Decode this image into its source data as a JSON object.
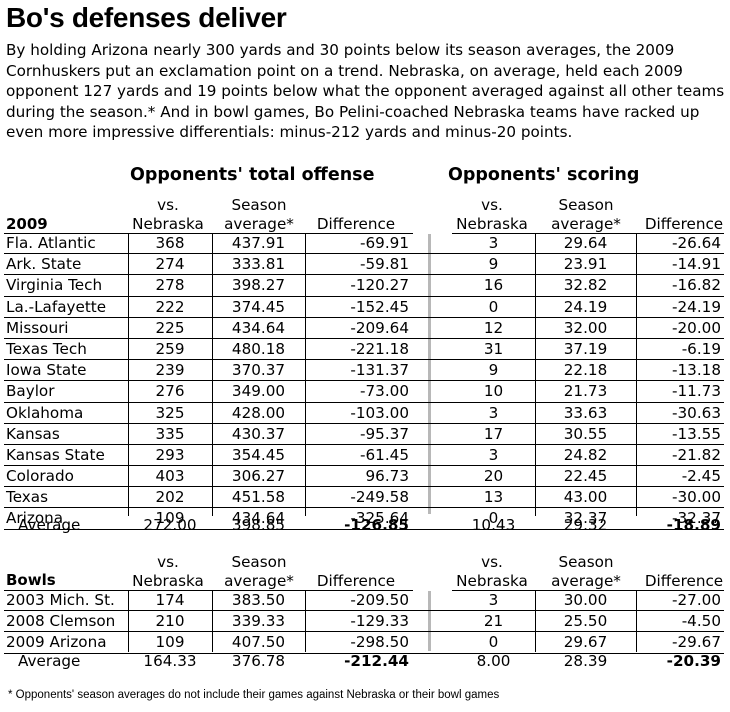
{
  "title": "Bo's defenses deliver",
  "intro": "By holding Arizona nearly 300 yards and 30 points below its season averages, the 2009 Cornhuskers put an exclamation point on a trend. Nebraska, on average, held each 2009 opponent 127 yards and 19 points below what the opponent averaged against all other teams during the season.* And in bowl games, Bo Pelini-coached Nebraska teams have racked up even more impressive differentials: minus-212 yards and minus-20 points.",
  "offense_title": "Opponents' total offense",
  "scoring_title": "Opponents' scoring",
  "headers": {
    "vs": "vs.",
    "nebraska": "Nebraska",
    "season": "Season",
    "average": "average*",
    "difference": "Difference"
  },
  "season2009": {
    "label": "2009",
    "rows": [
      {
        "team": "Fla. Atlantic",
        "o_vs": "368",
        "o_avg": "437.91",
        "o_diff": "-69.91",
        "s_vs": "3",
        "s_avg": "29.64",
        "s_diff": "-26.64"
      },
      {
        "team": "Ark. State",
        "o_vs": "274",
        "o_avg": "333.81",
        "o_diff": "-59.81",
        "s_vs": "9",
        "s_avg": "23.91",
        "s_diff": "-14.91"
      },
      {
        "team": "Virginia Tech",
        "o_vs": "278",
        "o_avg": "398.27",
        "o_diff": "-120.27",
        "s_vs": "16",
        "s_avg": "32.82",
        "s_diff": "-16.82"
      },
      {
        "team": "La.-Lafayette",
        "o_vs": "222",
        "o_avg": "374.45",
        "o_diff": "-152.45",
        "s_vs": "0",
        "s_avg": "24.19",
        "s_diff": "-24.19"
      },
      {
        "team": "Missouri",
        "o_vs": "225",
        "o_avg": "434.64",
        "o_diff": "-209.64",
        "s_vs": "12",
        "s_avg": "32.00",
        "s_diff": "-20.00"
      },
      {
        "team": "Texas Tech",
        "o_vs": "259",
        "o_avg": "480.18",
        "o_diff": "-221.18",
        "s_vs": "31",
        "s_avg": "37.19",
        "s_diff": "-6.19"
      },
      {
        "team": "Iowa State",
        "o_vs": "239",
        "o_avg": "370.37",
        "o_diff": "-131.37",
        "s_vs": "9",
        "s_avg": "22.18",
        "s_diff": "-13.18"
      },
      {
        "team": "Baylor",
        "o_vs": "276",
        "o_avg": "349.00",
        "o_diff": "-73.00",
        "s_vs": "10",
        "s_avg": "21.73",
        "s_diff": "-11.73"
      },
      {
        "team": "Oklahoma",
        "o_vs": "325",
        "o_avg": "428.00",
        "o_diff": "-103.00",
        "s_vs": "3",
        "s_avg": "33.63",
        "s_diff": "-30.63"
      },
      {
        "team": "Kansas",
        "o_vs": "335",
        "o_avg": "430.37",
        "o_diff": "-95.37",
        "s_vs": "17",
        "s_avg": "30.55",
        "s_diff": "-13.55"
      },
      {
        "team": "Kansas State",
        "o_vs": "293",
        "o_avg": "354.45",
        "o_diff": "-61.45",
        "s_vs": "3",
        "s_avg": "24.82",
        "s_diff": "-21.82"
      },
      {
        "team": "Colorado",
        "o_vs": "403",
        "o_avg": "306.27",
        "o_diff": "96.73",
        "s_vs": "20",
        "s_avg": "22.45",
        "s_diff": "-2.45"
      },
      {
        "team": "Texas",
        "o_vs": "202",
        "o_avg": "451.58",
        "o_diff": "-249.58",
        "s_vs": "13",
        "s_avg": "43.00",
        "s_diff": "-30.00"
      },
      {
        "team": "Arizona",
        "o_vs": "109",
        "o_avg": "434.64",
        "o_diff": "-325.64",
        "s_vs": "0",
        "s_avg": "32.37",
        "s_diff": "-32.37"
      }
    ],
    "average": {
      "label": "Average",
      "o_vs": "272.00",
      "o_avg": "398.85",
      "o_diff": "-126.85",
      "s_vs": "10.43",
      "s_avg": "29.32",
      "s_diff": "-18.89"
    }
  },
  "bowls": {
    "label": "Bowls",
    "rows": [
      {
        "team": "2003 Mich. St.",
        "o_vs": "174",
        "o_avg": "383.50",
        "o_diff": "-209.50",
        "s_vs": "3",
        "s_avg": "30.00",
        "s_diff": "-27.00"
      },
      {
        "team": "2008 Clemson",
        "o_vs": "210",
        "o_avg": "339.33",
        "o_diff": "-129.33",
        "s_vs": "21",
        "s_avg": "25.50",
        "s_diff": "-4.50"
      },
      {
        "team": "2009 Arizona",
        "o_vs": "109",
        "o_avg": "407.50",
        "o_diff": "-298.50",
        "s_vs": "0",
        "s_avg": "29.67",
        "s_diff": "-29.67"
      }
    ],
    "average": {
      "label": "Average",
      "o_vs": "164.33",
      "o_avg": "376.78",
      "o_diff": "-212.44",
      "s_vs": "8.00",
      "s_avg": "28.39",
      "s_diff": "-20.39"
    }
  },
  "footnote": "* Opponents' season averages do not include their games against Nebraska or their bowl games"
}
